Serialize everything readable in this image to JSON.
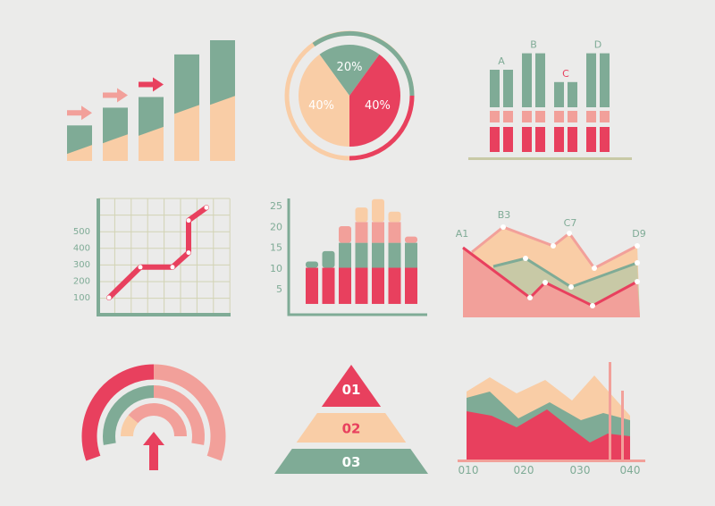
{
  "colors": {
    "green": "#7fab96",
    "red": "#e8405e",
    "peach": "#f9cda6",
    "pink": "#f2a09a",
    "olive": "#c8c9a6",
    "grid": "#d2d3b4",
    "bg": "#ebebea"
  },
  "chart_data": [
    {
      "type": "bar",
      "id": "rising-bars",
      "values": [
        1,
        1.5,
        1.8,
        3,
        3.4
      ],
      "arrows_on_first": 3
    },
    {
      "type": "pie",
      "id": "pie",
      "slices": [
        {
          "label": "20%",
          "value": 20,
          "color": "green"
        },
        {
          "label": "40%",
          "value": 40,
          "color": "red"
        },
        {
          "label": "40%",
          "value": 40,
          "color": "peach"
        }
      ]
    },
    {
      "type": "bar",
      "id": "grouped-bars",
      "categories": [
        "A",
        "B",
        "C",
        "D"
      ],
      "values": [
        100,
        120,
        85,
        120
      ],
      "highlight": "C"
    },
    {
      "type": "line",
      "id": "line-grid",
      "yticks": [
        "500",
        "400",
        "300",
        "200",
        "100"
      ],
      "y": [
        50,
        240,
        240,
        330,
        530,
        610
      ]
    },
    {
      "type": "bar",
      "id": "stacked-bars",
      "yticks": [
        "25",
        "20",
        "15",
        "10",
        "5"
      ],
      "values": [
        11.5,
        14,
        20,
        24.5,
        26.5,
        23.5,
        17.5
      ],
      "bands": [
        10,
        16,
        21
      ]
    },
    {
      "type": "area",
      "id": "area-labels",
      "labels": [
        "A1",
        "B3",
        "C7",
        "D9"
      ]
    },
    {
      "type": "other",
      "id": "half-rings"
    },
    {
      "type": "other",
      "id": "pyramid",
      "levels": [
        "01",
        "02",
        "03"
      ]
    },
    {
      "type": "area",
      "id": "area-bottom",
      "xticks": [
        "010",
        "020",
        "030",
        "040"
      ]
    }
  ]
}
